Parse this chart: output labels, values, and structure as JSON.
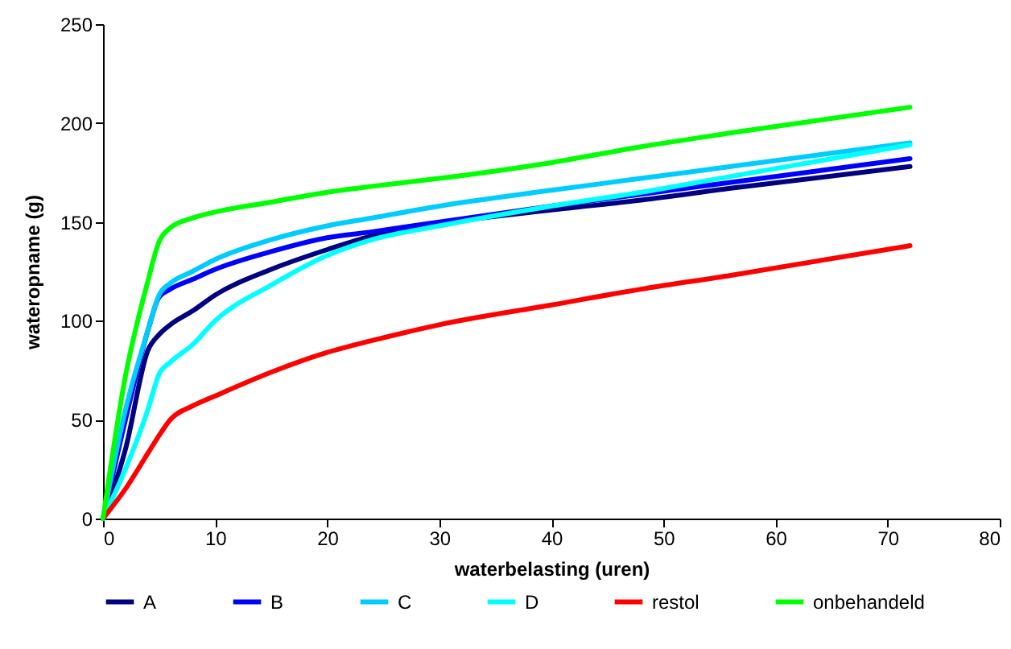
{
  "chart_data": {
    "type": "line",
    "xlabel": "waterbelasting (uren)",
    "ylabel": "wateropname (g)",
    "x": [
      0,
      2,
      4,
      5,
      6,
      8,
      10,
      15,
      20,
      24,
      30,
      40,
      48,
      56,
      72
    ],
    "series": [
      {
        "name": "A",
        "color": "#000080",
        "values": [
          0,
          35,
          85,
          93,
          98,
          105,
          113,
          126,
          136,
          143,
          149,
          156,
          161,
          167,
          178
        ]
      },
      {
        "name": "B",
        "color": "#0000ff",
        "values": [
          0,
          50,
          95,
          112,
          116,
          121,
          126,
          135,
          142,
          145,
          150,
          158,
          164,
          170,
          182
        ]
      },
      {
        "name": "C",
        "color": "#00ccff",
        "values": [
          0,
          55,
          95,
          113,
          119,
          125,
          131,
          141,
          148,
          152,
          158,
          166,
          172,
          178,
          190
        ]
      },
      {
        "name": "D",
        "color": "#00ffff",
        "values": [
          0,
          25,
          55,
          73,
          79,
          88,
          100,
          118,
          133,
          141,
          148,
          158,
          165,
          173,
          189
        ]
      },
      {
        "name": "restol",
        "color": "#ff0000",
        "values": [
          0,
          15,
          33,
          42,
          50,
          57,
          62,
          74,
          84,
          90,
          98,
          108,
          116,
          123,
          138
        ]
      },
      {
        "name": "onbehandeld",
        "color": "#00ff00",
        "values": [
          0,
          72,
          120,
          140,
          147,
          152,
          155,
          160,
          165,
          168,
          172,
          180,
          188,
          195,
          208
        ]
      }
    ],
    "xlim": [
      0,
      80
    ],
    "xticks": [
      0,
      10,
      20,
      30,
      40,
      50,
      60,
      70,
      80
    ],
    "ylim": [
      0,
      250
    ],
    "yticks": [
      0,
      50,
      100,
      150,
      200,
      250
    ],
    "grid": false,
    "legend": "bottom",
    "marker": "none",
    "line_style": "solid"
  }
}
